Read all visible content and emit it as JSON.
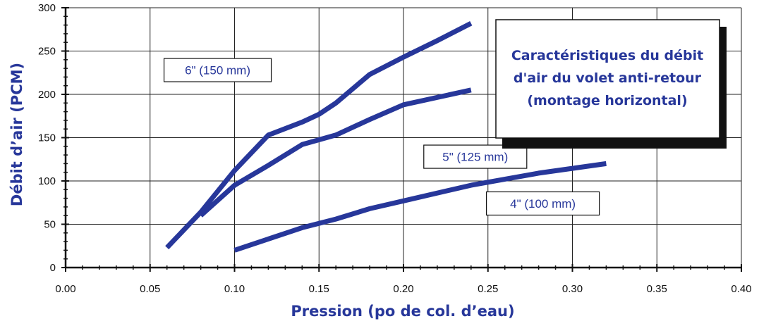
{
  "chart_data": {
    "type": "line",
    "title_lines": [
      "Caractéristiques du débit",
      "d'air du volet anti-retour",
      "(montage horizontal)"
    ],
    "xlabel": "Pression (po de col. d’eau)",
    "ylabel": "Débit d’air (PCM)",
    "xlim": [
      0,
      0.4
    ],
    "ylim": [
      0,
      300
    ],
    "x_ticks": [
      "0.00",
      "0.05",
      "0.10",
      "0.15",
      "0.20",
      "0.25",
      "0.30",
      "0.35",
      "0.40"
    ],
    "y_ticks": [
      "0",
      "50",
      "100",
      "150",
      "200",
      "250",
      "300"
    ],
    "grid": true,
    "series": [
      {
        "name": "6\" (150 mm)",
        "points": [
          [
            0.06,
            23
          ],
          [
            0.08,
            64
          ],
          [
            0.1,
            112
          ],
          [
            0.12,
            153
          ],
          [
            0.14,
            168
          ],
          [
            0.15,
            177
          ],
          [
            0.16,
            190
          ],
          [
            0.18,
            223
          ],
          [
            0.2,
            243
          ],
          [
            0.22,
            262
          ],
          [
            0.24,
            282
          ]
        ]
      },
      {
        "name": "5\" (125 mm)",
        "points": [
          [
            0.08,
            60
          ],
          [
            0.1,
            95
          ],
          [
            0.12,
            118
          ],
          [
            0.14,
            142
          ],
          [
            0.16,
            153
          ],
          [
            0.18,
            171
          ],
          [
            0.2,
            188
          ],
          [
            0.24,
            205
          ]
        ]
      },
      {
        "name": "4\" (100 mm)",
        "points": [
          [
            0.1,
            20
          ],
          [
            0.12,
            33
          ],
          [
            0.14,
            46
          ],
          [
            0.16,
            56
          ],
          [
            0.18,
            68
          ],
          [
            0.2,
            77
          ],
          [
            0.24,
            95
          ],
          [
            0.28,
            109
          ],
          [
            0.32,
            120
          ]
        ]
      }
    ],
    "colors": {
      "line": "#27379a",
      "label_text": "#27379a",
      "title_text": "#27379a",
      "axis_title": "#27379a",
      "grid": "#222222",
      "shadow": "#111111"
    }
  }
}
